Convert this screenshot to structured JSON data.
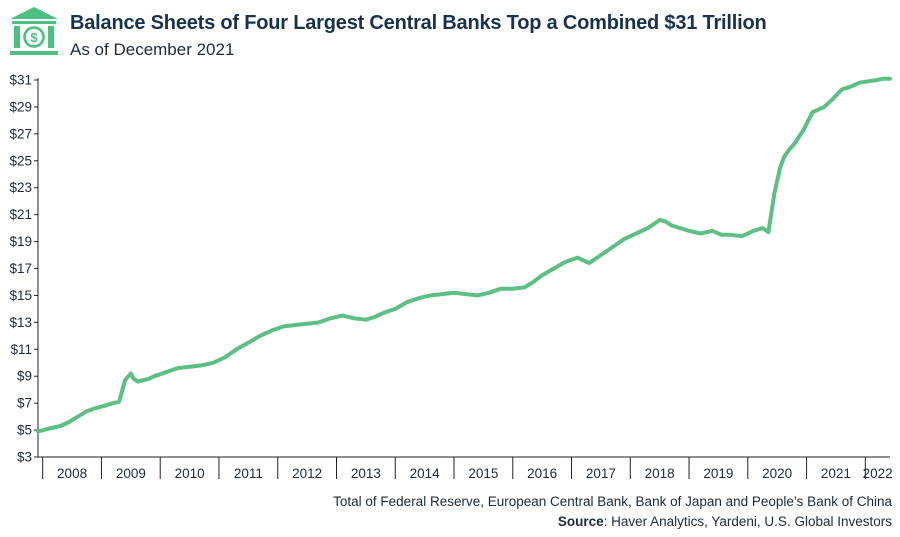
{
  "header": {
    "title": "Balance Sheets of Four Largest Central Banks Top a Combined $31 Trillion",
    "subtitle": "As of December 2021"
  },
  "logo": {
    "icon": "bank-dollar-icon",
    "color": "#4dbf81"
  },
  "footer": {
    "note": "Total of Federal Reserve, European Central Bank, Bank of Japan and People’s Bank of China",
    "source_label": "Source",
    "source_text": ": Haver Analytics, Yardeni, U.S. Global Investors"
  },
  "chart_data": {
    "type": "line",
    "title": "",
    "xlabel": "",
    "ylabel": "",
    "ylim": [
      3,
      31
    ],
    "yticks": [
      "$3",
      "$5",
      "$7",
      "$9",
      "$11",
      "$13",
      "$15",
      "$17",
      "$19",
      "$21",
      "$23",
      "$25",
      "$27",
      "$29",
      "$31"
    ],
    "ytick_values": [
      3,
      5,
      7,
      9,
      11,
      13,
      15,
      17,
      19,
      21,
      23,
      25,
      27,
      29,
      31
    ],
    "xlim": [
      2007.92,
      2022.42
    ],
    "xticks": [
      "2008",
      "2009",
      "2010",
      "2011",
      "2012",
      "2013",
      "2014",
      "2015",
      "2016",
      "2017",
      "2018",
      "2019",
      "2020",
      "2021",
      "2022"
    ],
    "grid": false,
    "line_color": "#5cbf83",
    "series": [
      {
        "name": "",
        "x": [
          2007.92,
          2008.1,
          2008.3,
          2008.45,
          2008.6,
          2008.75,
          2008.88,
          2009.05,
          2009.2,
          2009.3,
          2009.4,
          2009.5,
          2009.55,
          2009.62,
          2009.7,
          2009.8,
          2009.9,
          2010.1,
          2010.3,
          2010.5,
          2010.7,
          2010.9,
          2011.1,
          2011.3,
          2011.5,
          2011.7,
          2011.9,
          2012.1,
          2012.3,
          2012.5,
          2012.7,
          2012.9,
          2013.1,
          2013.3,
          2013.5,
          2013.65,
          2013.8,
          2014.0,
          2014.2,
          2014.4,
          2014.6,
          2014.8,
          2015.0,
          2015.2,
          2015.4,
          2015.6,
          2015.8,
          2016.0,
          2016.2,
          2016.35,
          2016.5,
          2016.7,
          2016.9,
          2017.1,
          2017.3,
          2017.5,
          2017.7,
          2017.9,
          2018.1,
          2018.3,
          2018.5,
          2018.6,
          2018.7,
          2018.85,
          2019.0,
          2019.2,
          2019.4,
          2019.55,
          2019.7,
          2019.9,
          2020.1,
          2020.25,
          2020.35,
          2020.45,
          2020.55,
          2020.62,
          2020.7,
          2020.8,
          2020.95,
          2021.1,
          2021.3,
          2021.45,
          2021.6,
          2021.75,
          2021.9,
          2022.05,
          2022.2,
          2022.3,
          2022.42
        ],
        "values": [
          4.9,
          5.1,
          5.3,
          5.6,
          6.0,
          6.4,
          6.6,
          6.8,
          7.0,
          7.1,
          8.7,
          9.2,
          8.8,
          8.6,
          8.7,
          8.8,
          9.0,
          9.3,
          9.6,
          9.7,
          9.8,
          10.0,
          10.4,
          11.0,
          11.5,
          12.0,
          12.4,
          12.7,
          12.8,
          12.9,
          13.0,
          13.3,
          13.5,
          13.3,
          13.2,
          13.4,
          13.7,
          14.0,
          14.5,
          14.8,
          15.0,
          15.1,
          15.2,
          15.1,
          15.0,
          15.2,
          15.5,
          15.5,
          15.6,
          16.0,
          16.5,
          17.0,
          17.5,
          17.8,
          17.4,
          18.0,
          18.6,
          19.2,
          19.6,
          20.0,
          20.6,
          20.5,
          20.2,
          20.0,
          19.8,
          19.6,
          19.8,
          19.5,
          19.5,
          19.4,
          19.8,
          20.0,
          19.7,
          22.5,
          24.5,
          25.3,
          25.8,
          26.3,
          27.3,
          28.6,
          29.0,
          29.6,
          30.3,
          30.5,
          30.8,
          30.9,
          31.0,
          31.1,
          31.1
        ]
      }
    ]
  }
}
